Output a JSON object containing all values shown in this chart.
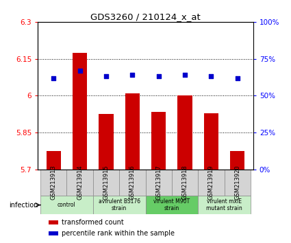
{
  "title": "GDS3260 / 210124_x_at",
  "samples": [
    "GSM213913",
    "GSM213914",
    "GSM213915",
    "GSM213916",
    "GSM213917",
    "GSM213918",
    "GSM213919",
    "GSM213920"
  ],
  "bar_values": [
    5.775,
    6.175,
    5.925,
    6.01,
    5.935,
    6.0,
    5.93,
    5.775
  ],
  "percentile_values": [
    62,
    67,
    63,
    64,
    63,
    64,
    63,
    62
  ],
  "bar_color": "#cc0000",
  "dot_color": "#0000cc",
  "ylim_left": [
    5.7,
    6.3
  ],
  "ylim_right": [
    0,
    100
  ],
  "yticks_left": [
    5.7,
    5.85,
    6.0,
    6.15,
    6.3
  ],
  "ytick_labels_left": [
    "5.7",
    "5.85",
    "6",
    "6.15",
    "6.3"
  ],
  "yticks_right": [
    0,
    25,
    50,
    75,
    100
  ],
  "ytick_labels_right": [
    "0%",
    "25%",
    "50%",
    "75%",
    "100%"
  ],
  "hline_values": [
    5.85,
    6.0,
    6.15
  ],
  "groups": [
    {
      "label": "control",
      "start": 0,
      "end": 2,
      "color": "#c8eec8"
    },
    {
      "label": "avirulent BS176\nstrain",
      "start": 2,
      "end": 4,
      "color": "#c8eec8"
    },
    {
      "label": "virulent M90T\nstrain",
      "start": 4,
      "end": 6,
      "color": "#66cc66"
    },
    {
      "label": "virulent mxiE\nmutant strain",
      "start": 6,
      "end": 8,
      "color": "#c8eec8"
    }
  ],
  "infection_label": "infection",
  "legend_items": [
    {
      "color": "#cc0000",
      "label": "transformed count"
    },
    {
      "color": "#0000cc",
      "label": "percentile rank within the sample"
    }
  ],
  "sample_box_color": "#d4d4d4",
  "bar_width": 0.55
}
